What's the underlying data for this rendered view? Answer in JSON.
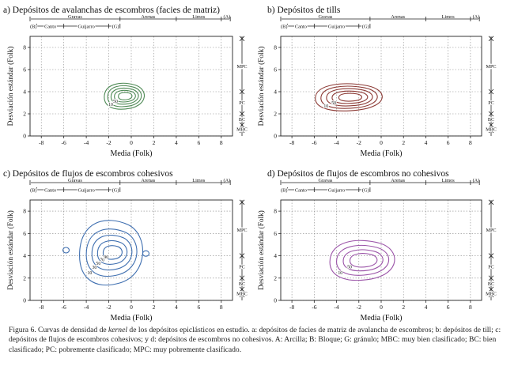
{
  "caption": {
    "pre": "Figura 6. Curvas de densidad de ",
    "keyword": "kernel",
    "post": " de los depósitos epiclásticos en estudio. a: depósitos de facies de matriz de avalancha de escombros; b: depósitos de till; c: depósitos de flujos de escombros cohesivos; y d: depósitos de escombros no cohesivos. A: Arcilla; B: Bloque; G: gránulo; MBC: muy bien clasificado; BC: bien clasificado; PC: pobremente clasificado; MPC: muy pobremente clasificado."
  },
  "colors": {
    "a": "#4e8a55",
    "b": "#8c3a35",
    "c": "#3f6fb0",
    "d": "#9b54a8"
  },
  "chart_data": [
    {
      "type": "contour",
      "panel": "a",
      "title": "a) Depósitos de avalanchas de escombros (facies de matriz)",
      "xlabel": "Media (Folk)",
      "ylabel": "Desviación estándar (Folk)",
      "xlim": [
        -9,
        9
      ],
      "ylim": [
        0,
        9
      ],
      "xticks": [
        -8,
        -6,
        -4,
        -2,
        0,
        2,
        4,
        6,
        8
      ],
      "yticks": [
        0,
        2,
        4,
        6,
        8
      ],
      "grain_top": [
        "Gravas",
        "Arenas",
        "Limos",
        "(A)"
      ],
      "grain_bottom": [
        "(B)",
        "Canto",
        "Guijarro",
        "(G)"
      ],
      "sorting_labels": [
        "MPC",
        "PC",
        "BC",
        "MBC"
      ],
      "contour_labels": [
        "10",
        "50"
      ],
      "center": [
        -0.5,
        3.6
      ],
      "contours": [
        {
          "level": 10,
          "rx": 1.9,
          "ry": 1.05
        },
        {
          "level": 30,
          "rx": 1.6,
          "ry": 0.85
        },
        {
          "level": 50,
          "rx": 1.3,
          "ry": 0.65
        },
        {
          "level": 70,
          "rx": 1.0,
          "ry": 0.47
        },
        {
          "level": 90,
          "rx": 0.65,
          "ry": 0.3
        }
      ]
    },
    {
      "type": "contour",
      "panel": "b",
      "title": "b) Depósitos de tills",
      "xlabel": "Media (Folk)",
      "ylabel": "Desviación estándar (Folk)",
      "xlim": [
        -9,
        9
      ],
      "ylim": [
        0,
        9
      ],
      "xticks": [
        -8,
        -6,
        -4,
        -2,
        0,
        2,
        4,
        6,
        8
      ],
      "yticks": [
        0,
        2,
        4,
        6,
        8
      ],
      "grain_top": [
        "Gravas",
        "Arenas",
        "Limos",
        "(A)"
      ],
      "grain_bottom": [
        "(B)",
        "Canto",
        "Guijarro",
        "(G)"
      ],
      "sorting_labels": [
        "MPC",
        "PC",
        "BC",
        "MBC"
      ],
      "contour_labels": [
        "10",
        "50"
      ],
      "center": [
        -2.7,
        3.5
      ],
      "contours": [
        {
          "level": 10,
          "rx": 3.2,
          "ry": 1.1
        },
        {
          "level": 30,
          "rx": 2.7,
          "ry": 0.9
        },
        {
          "level": 50,
          "rx": 2.2,
          "ry": 0.7
        },
        {
          "level": 70,
          "rx": 1.7,
          "ry": 0.5
        },
        {
          "level": 90,
          "rx": 1.1,
          "ry": 0.32
        }
      ]
    },
    {
      "type": "contour",
      "panel": "c",
      "title": "c) Depósitos de flujos de escombros cohesivos",
      "xlabel": "Media (Folk)",
      "ylabel": "Desviación estándar (Folk)",
      "xlim": [
        -9,
        9
      ],
      "ylim": [
        0,
        9
      ],
      "xticks": [
        -8,
        -6,
        -4,
        -2,
        0,
        2,
        4,
        6,
        8
      ],
      "yticks": [
        0,
        2,
        4,
        6,
        8
      ],
      "grain_top": [
        "Gravas",
        "Arenas",
        "Limos",
        "(A)"
      ],
      "grain_bottom": [
        "(B)",
        "Canto",
        "Guijarro",
        "(G)"
      ],
      "sorting_labels": [
        "MPC",
        "PC",
        "BC",
        "MBC"
      ],
      "contour_labels": [
        "10",
        "30",
        "50",
        "70",
        "90"
      ],
      "center": [
        -1.6,
        4.3
      ],
      "contours": [
        {
          "level": 10,
          "rx": 3.0,
          "ry": 2.6
        },
        {
          "level": 30,
          "rx": 2.4,
          "ry": 1.9
        },
        {
          "level": 50,
          "rx": 1.9,
          "ry": 1.4
        },
        {
          "level": 70,
          "rx": 1.4,
          "ry": 0.95
        },
        {
          "level": 90,
          "rx": 0.9,
          "ry": 0.55
        }
      ],
      "islands": [
        {
          "x": -5.8,
          "y": 4.5
        },
        {
          "x": 1.3,
          "y": 4.2
        }
      ]
    },
    {
      "type": "contour",
      "panel": "d",
      "title": "d) Depósitos de flujos de escombros no cohesivos",
      "xlabel": "Media (Folk)",
      "ylabel": "Desviación estándar (Folk)",
      "xlim": [
        -9,
        9
      ],
      "ylim": [
        0,
        9
      ],
      "xticks": [
        -8,
        -6,
        -4,
        -2,
        0,
        2,
        4,
        6,
        8
      ],
      "yticks": [
        0,
        2,
        4,
        6,
        8
      ],
      "grain_top": [
        "Gravas",
        "Arenas",
        "Limos",
        "(A)"
      ],
      "grain_bottom": [
        "(B)",
        "Canto",
        "Guijarro",
        "(G)"
      ],
      "sorting_labels": [
        "MPC",
        "PC",
        "BC",
        "MBC"
      ],
      "contour_labels": [
        "10",
        "50"
      ],
      "center": [
        -1.5,
        3.6
      ],
      "contours": [
        {
          "level": 10,
          "rx": 3.1,
          "ry": 1.6
        },
        {
          "level": 30,
          "rx": 2.5,
          "ry": 1.2
        },
        {
          "level": 50,
          "rx": 1.9,
          "ry": 0.85
        },
        {
          "level": 70,
          "rx": 1.3,
          "ry": 0.55
        }
      ]
    }
  ]
}
